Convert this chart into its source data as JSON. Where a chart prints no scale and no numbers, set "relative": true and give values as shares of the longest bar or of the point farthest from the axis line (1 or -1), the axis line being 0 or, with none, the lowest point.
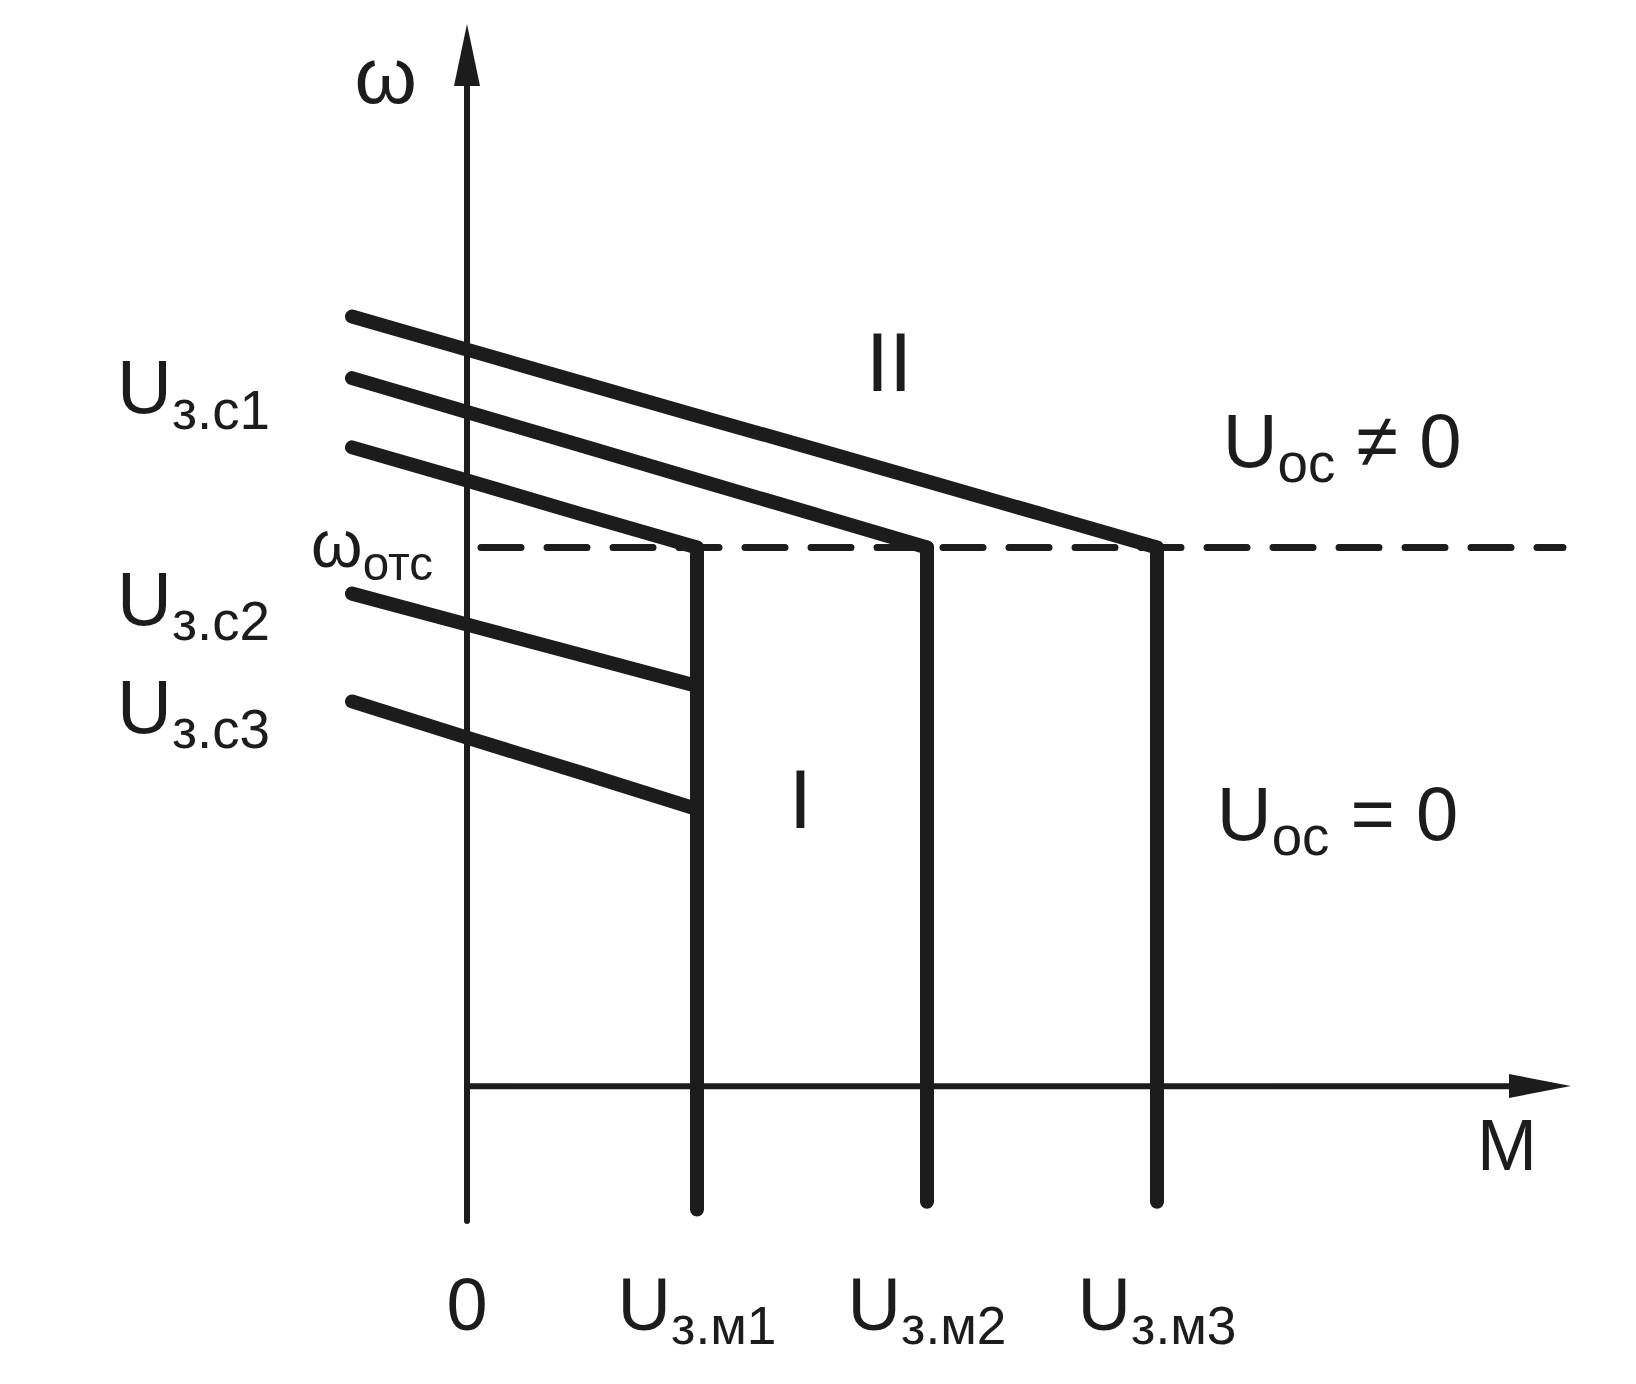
{
  "chart_data": {
    "type": "line",
    "relative": true,
    "xlabel": "M",
    "ylabel": "ω",
    "marker": "none",
    "line_style": "solid",
    "categories": [
      null,
      "0",
      null,
      "U$_{з.м1}$",
      null,
      "U$_{з.м2}$",
      null,
      "U$_{з.м3}$",
      null,
      null,
      null
    ],
    "series": [
      {
        "color": "#1c1c1c",
        "x": [
          "U$_{з.м1}$",
          "U$_{з.м1}$"
        ],
        "values": [
          0.7,
          -0.16
        ]
      },
      {
        "color": "#1c1c1c",
        "x": [
          "U$_{з.м2}$",
          "U$_{з.м2}$"
        ],
        "values": [
          0.7,
          -0.15
        ]
      },
      {
        "color": "#1c1c1c",
        "x": [
          "U$_{з.м3}$",
          "U$_{з.м3}$"
        ],
        "values": [
          0.7,
          -0.15
        ]
      },
      {
        "name": "U$_{з.с2}$",
        "color": "#1c1c1c",
        "values": [
          0.64,
          0.6,
          0.56,
          0.52,
          null,
          null,
          null,
          null,
          null,
          null,
          null
        ]
      },
      {
        "name": "U$_{з.с3}$",
        "color": "#1c1c1c",
        "values": [
          0.5,
          0.453,
          0.407,
          0.36,
          null,
          null,
          null,
          null,
          null,
          null,
          null
        ]
      },
      {
        "name": "U$_{з.с1}$",
        "color": "#1c1c1c",
        "values": [
          1,
          0.957,
          0.914,
          0.871,
          0.829,
          0.786,
          0.743,
          0.7,
          null,
          null,
          null
        ]
      },
      {
        "color": "#1c1c1c",
        "values": [
          0.92,
          0.876,
          0.832,
          0.788,
          0.744,
          0.7,
          null,
          null,
          null,
          null,
          null
        ]
      },
      {
        "color": "#1c1c1c",
        "values": [
          0.83,
          0.787,
          0.743,
          0.7,
          null,
          null,
          null,
          null,
          null,
          null,
          null
        ]
      }
    ],
    "ref_lines": [
      {
        "axis": "y",
        "value": 0.7,
        "label": "ω$_{отс}$",
        "line_style": "dashed",
        "color": "#1c1c1c"
      }
    ],
    "annotations": [
      "II",
      "I",
      "U$_{ос}$ ≠ 0",
      "U$_{ос}$ = 0"
    ]
  }
}
